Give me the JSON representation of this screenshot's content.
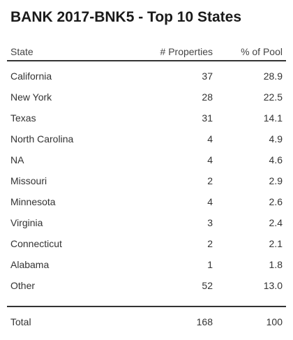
{
  "title": "BANK 2017-BNK5 - Top 10 States",
  "columns": {
    "state": "State",
    "properties": "# Properties",
    "pool": "% of Pool"
  },
  "rows": [
    {
      "state": "California",
      "properties": "37",
      "pool": "28.9"
    },
    {
      "state": "New York",
      "properties": "28",
      "pool": "22.5"
    },
    {
      "state": "Texas",
      "properties": "31",
      "pool": "14.1"
    },
    {
      "state": "North Carolina",
      "properties": "4",
      "pool": "4.9"
    },
    {
      "state": "NA",
      "properties": "4",
      "pool": "4.6"
    },
    {
      "state": "Missouri",
      "properties": "2",
      "pool": "2.9"
    },
    {
      "state": "Minnesota",
      "properties": "4",
      "pool": "2.6"
    },
    {
      "state": "Virginia",
      "properties": "3",
      "pool": "2.4"
    },
    {
      "state": "Connecticut",
      "properties": "2",
      "pool": "2.1"
    },
    {
      "state": "Alabama",
      "properties": "1",
      "pool": "1.8"
    },
    {
      "state": "Other",
      "properties": "52",
      "pool": "13.0"
    }
  ],
  "total": {
    "label": "Total",
    "properties": "168",
    "pool": "100"
  }
}
